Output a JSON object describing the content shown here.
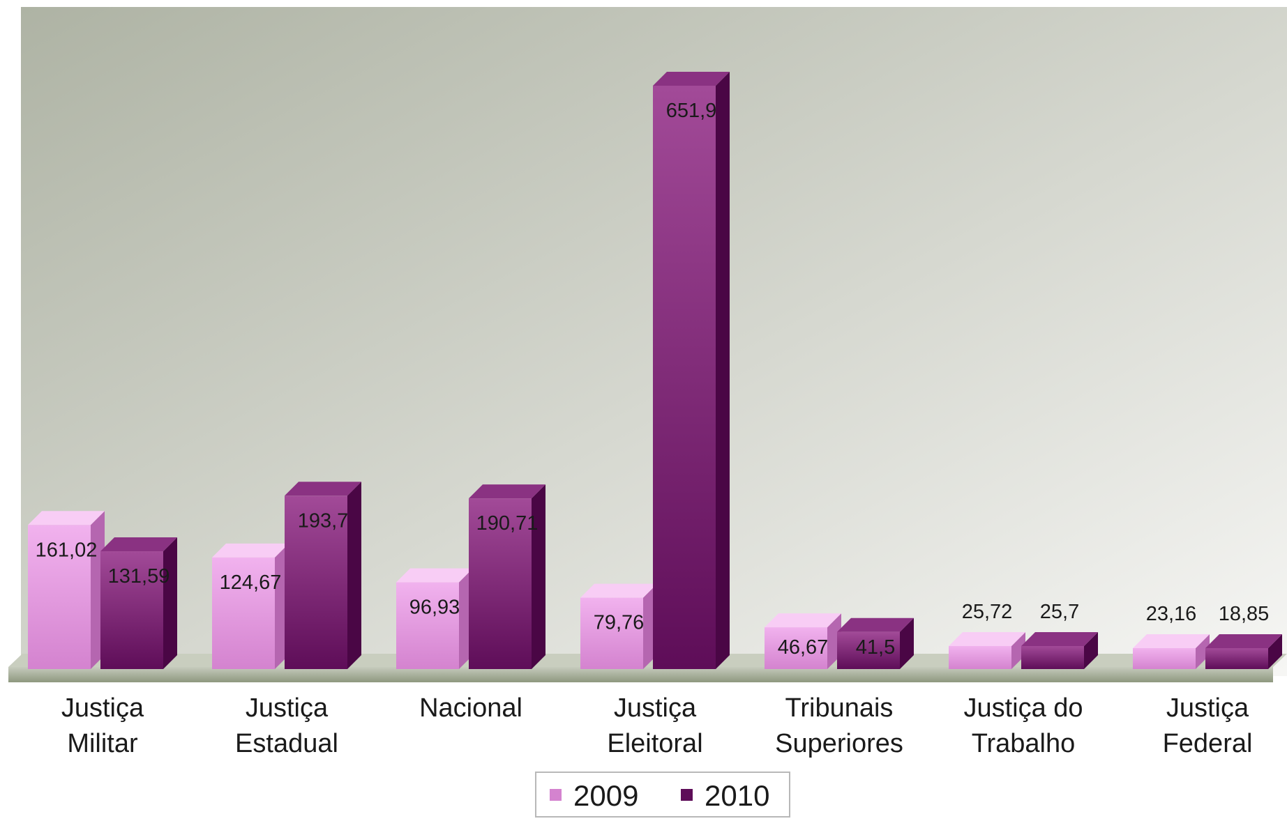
{
  "chart_data": {
    "type": "bar",
    "categories": [
      [
        "Justiça",
        "Militar"
      ],
      [
        "Justiça",
        "Estadual"
      ],
      [
        "Nacional"
      ],
      [
        "Justiça",
        "Eleitoral"
      ],
      [
        "Tribunais",
        "Superiores"
      ],
      [
        "Justiça do",
        "Trabalho"
      ],
      [
        "Justiça",
        "Federal"
      ]
    ],
    "series": [
      {
        "name": "2009",
        "values": [
          161.02,
          124.67,
          96.93,
          79.76,
          46.67,
          25.72,
          23.16
        ],
        "labels": [
          "161,02",
          "124,67",
          "96,93",
          "79,76",
          "46,67",
          "25,72",
          "23,16"
        ]
      },
      {
        "name": "2010",
        "values": [
          131.59,
          193.7,
          190.71,
          651.9,
          41.5,
          25.7,
          18.85
        ],
        "labels": [
          "131,59",
          "193,7",
          "190,71",
          "651,9",
          "41,5",
          "25,7",
          "18,85"
        ]
      }
    ],
    "ylim": [
      0,
      651.9
    ],
    "legend": "bottom-center",
    "grid": false,
    "colors": {
      "series_2009": {
        "front_top": "#f1b2ee",
        "front_bottom": "#d483cf",
        "side": "#b566b0",
        "top": "#f8cdf5"
      },
      "series_2010": {
        "front_top": "#a24a98",
        "front_bottom": "#5e0d58",
        "side": "#4a0645",
        "top": "#8a3282"
      },
      "background_top": "#aeb3a4",
      "background_bottom": "#f3f3f1",
      "floor": "#a3ac98"
    }
  }
}
